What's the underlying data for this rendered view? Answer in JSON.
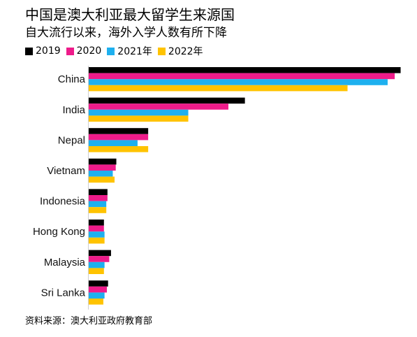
{
  "title": "中国是澳大利亚最大留学生来源国",
  "subtitle": "自大流行以来，海外入学人数有所下降",
  "source": "资料来源：澳大利亚政府教育部",
  "chart_data": {
    "type": "bar",
    "orientation": "horizontal",
    "categories": [
      "China",
      "India",
      "Nepal",
      "Vietnam",
      "Indonesia",
      "Hong Kong",
      "Malaysia",
      "Sri Lanka"
    ],
    "series": [
      {
        "name": "2019",
        "color": "#000000",
        "values": [
          265000,
          133000,
          51000,
          24000,
          16500,
          13500,
          19500,
          17000
        ]
      },
      {
        "name": "2020",
        "color": "#ee1b8a",
        "values": [
          260000,
          119000,
          51000,
          23500,
          16500,
          13500,
          18000,
          16000
        ]
      },
      {
        "name": "2021年",
        "color": "#1eb0ef",
        "values": [
          254000,
          85000,
          42000,
          21000,
          15500,
          14000,
          14000,
          14000
        ]
      },
      {
        "name": "2022年",
        "color": "#ffc300",
        "values": [
          220000,
          85000,
          51000,
          22500,
          15500,
          14000,
          13500,
          13000
        ]
      }
    ],
    "xlim": [
      0,
      270000
    ],
    "grid": false,
    "legend_position": "top-left"
  }
}
